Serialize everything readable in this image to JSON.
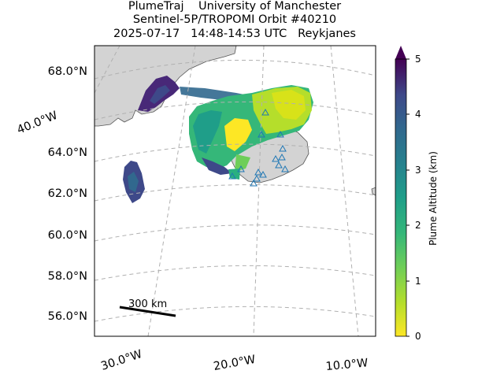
{
  "header": {
    "line1": "PlumeTraj    University of Manchester",
    "line2": "Sentinel-5P/TROPOMI Orbit #40210",
    "line3": "2025-07-17   14:48-14:53 UTC   Reykjanes"
  },
  "map": {
    "lat_labels": [
      "68.0°N",
      "64.0°N",
      "62.0°N",
      "60.0°N",
      "58.0°N",
      "56.0°N"
    ],
    "lon_labels": [
      "30.0°W",
      "20.0°W",
      "10.0°W"
    ],
    "side_label": "40.0°W",
    "scale_label": "300 km",
    "land_color": "#d3d3d3",
    "grid_color": "#b0b0b0",
    "volcano_marker_color": "#1f77b4"
  },
  "colorbar": {
    "label": "Plume Altitude (km)",
    "ticks": [
      "5",
      "4",
      "3",
      "2",
      "1",
      "0"
    ],
    "colormap": "viridis_r",
    "range": [
      0,
      5
    ],
    "extend": "max"
  }
}
